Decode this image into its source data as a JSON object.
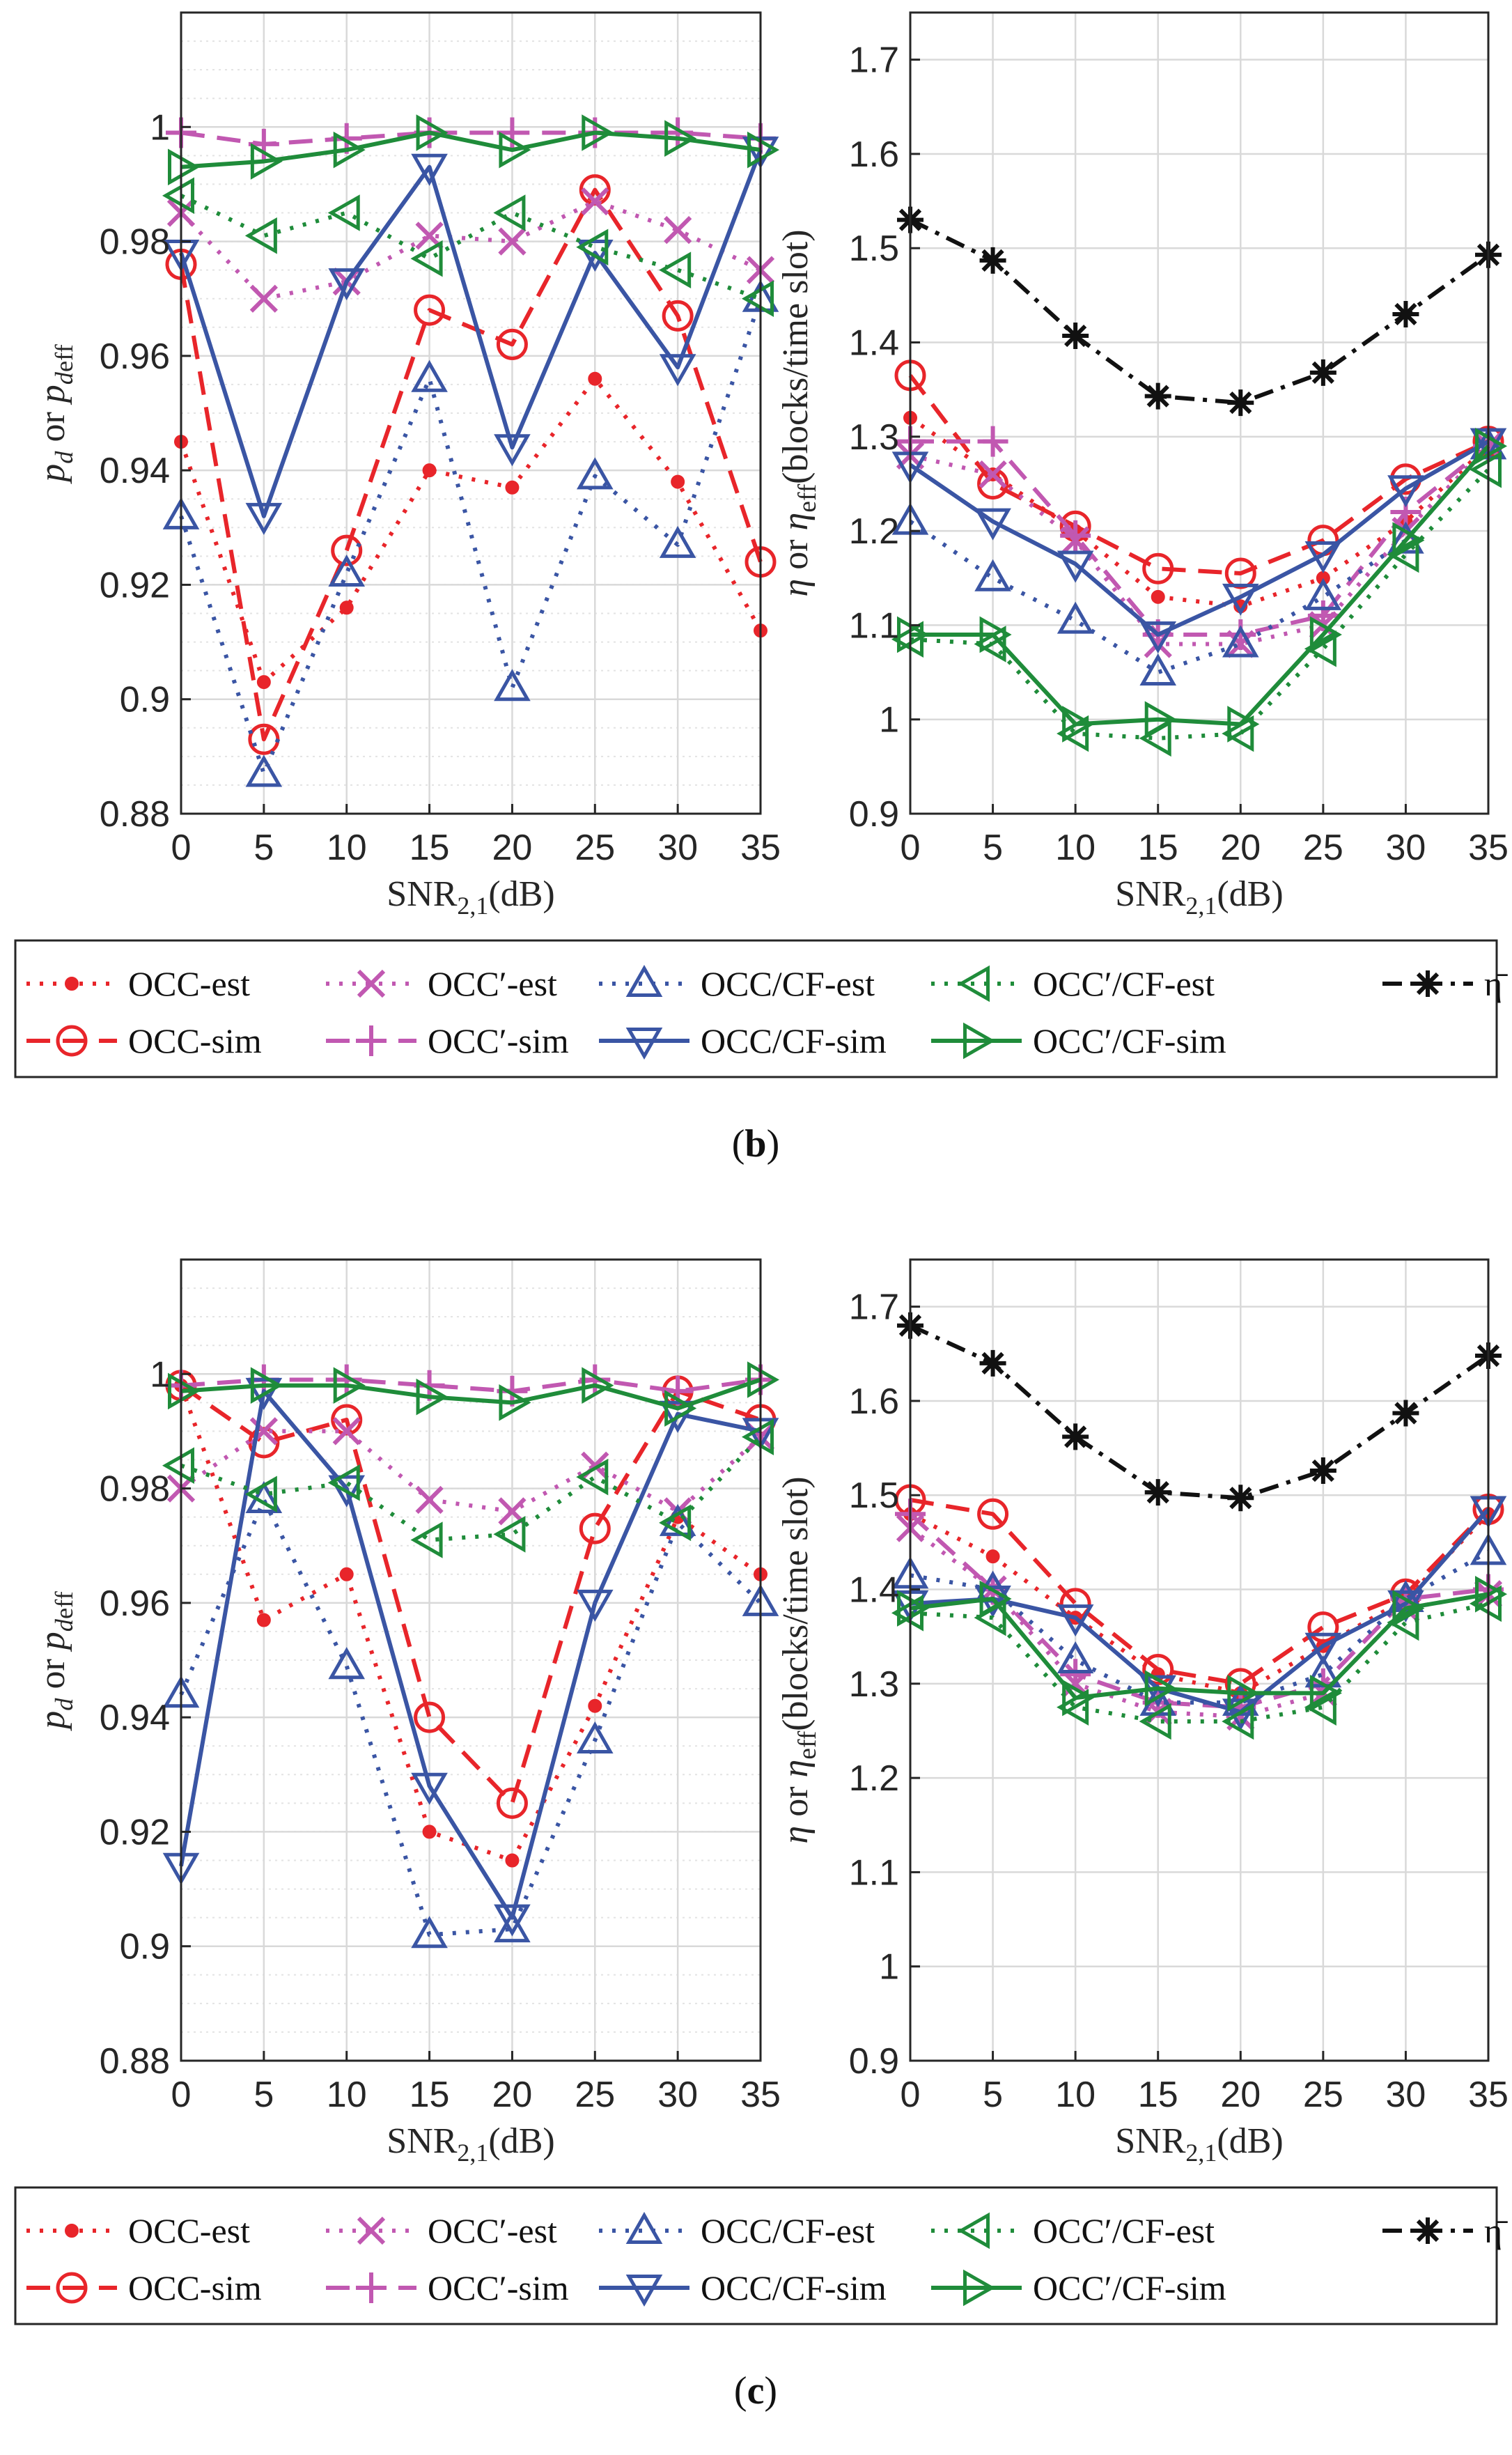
{
  "figure": {
    "panels": [
      {
        "label": "(b)",
        "label_text": "b"
      },
      {
        "label": "(c)",
        "label_text": "c"
      }
    ]
  },
  "colors": {
    "OCC-est": "#e8252a",
    "OCC-sim": "#e8252a",
    "OCC'-est": "#c158b1",
    "OCC'-sim": "#c158b1",
    "OCC/CF-est": "#3a55a4",
    "OCC/CF-sim": "#3a55a4",
    "OCC'/CF-est": "#1f8c3a",
    "OCC'/CF-sim": "#1f8c3a",
    "eta_bar": "#111111",
    "grid": "#d9d9d9",
    "axis": "#262626"
  },
  "legend": {
    "entries": [
      {
        "key": "occ_est",
        "label": "OCC-est"
      },
      {
        "key": "occp_est",
        "label": "OCC′-est"
      },
      {
        "key": "occcf_est",
        "label": "OCC/CF-est"
      },
      {
        "key": "occpcf_est",
        "label": "OCC′/CF-est"
      },
      {
        "key": "eta_bar",
        "label": "η̄"
      },
      {
        "key": "occ_sim",
        "label": "OCC-sim"
      },
      {
        "key": "occp_sim",
        "label": "OCC′-sim"
      },
      {
        "key": "occcf_sim",
        "label": "OCC/CF-sim"
      },
      {
        "key": "occpcf_sim",
        "label": "OCC′/CF-sim"
      }
    ]
  },
  "chart_data": [
    {
      "panel": "b",
      "position": "left",
      "type": "line",
      "title": "",
      "xlabel": "SNR2,1(dB)",
      "ylabel": "pd or pdeff",
      "x": [
        0,
        5,
        10,
        15,
        20,
        25,
        30,
        35
      ],
      "xticks": [
        "0",
        "5",
        "10",
        "15",
        "20",
        "25",
        "30",
        "35"
      ],
      "ylim": [
        0.88,
        1.02
      ],
      "yticks": [
        "0.88",
        "0.9",
        "0.92",
        "0.94",
        "0.96",
        "0.98",
        "1"
      ],
      "series": [
        {
          "key": "occ_est",
          "name": "OCC-est",
          "values": [
            0.945,
            0.903,
            0.916,
            0.94,
            0.937,
            0.956,
            0.938,
            0.912
          ]
        },
        {
          "key": "occ_sim",
          "name": "OCC-sim",
          "values": [
            0.976,
            0.893,
            0.926,
            0.968,
            0.962,
            0.989,
            0.967,
            0.924
          ]
        },
        {
          "key": "occp_est",
          "name": "OCC′-est",
          "values": [
            0.985,
            0.97,
            0.973,
            0.981,
            0.98,
            0.987,
            0.982,
            0.975
          ]
        },
        {
          "key": "occp_sim",
          "name": "OCC′-sim",
          "values": [
            0.999,
            0.997,
            0.998,
            0.999,
            0.999,
            0.999,
            0.999,
            0.998
          ]
        },
        {
          "key": "occcf_est",
          "name": "OCC/CF-est",
          "values": [
            0.932,
            0.887,
            0.922,
            0.956,
            0.902,
            0.939,
            0.927,
            0.97
          ]
        },
        {
          "key": "occcf_sim",
          "name": "OCC/CF-sim",
          "values": [
            0.978,
            0.932,
            0.973,
            0.993,
            0.944,
            0.978,
            0.958,
            0.996
          ]
        },
        {
          "key": "occpcf_est",
          "name": "OCC′/CF-est",
          "values": [
            0.988,
            0.981,
            0.985,
            0.977,
            0.985,
            0.979,
            0.975,
            0.97
          ]
        },
        {
          "key": "occpcf_sim",
          "name": "OCC′/CF-sim",
          "values": [
            0.993,
            0.994,
            0.996,
            0.999,
            0.996,
            0.999,
            0.998,
            0.996
          ]
        }
      ]
    },
    {
      "panel": "b",
      "position": "right",
      "type": "line",
      "title": "",
      "xlabel": "SNR2,1(dB)",
      "ylabel": "η or ηeff(blocks/time slot)",
      "x": [
        0,
        5,
        10,
        15,
        20,
        25,
        30,
        35
      ],
      "xticks": [
        "0",
        "5",
        "10",
        "15",
        "20",
        "25",
        "30",
        "35"
      ],
      "ylim": [
        0.9,
        1.75
      ],
      "yticks": [
        "0.9",
        "1",
        "1.1",
        "1.2",
        "1.3",
        "1.4",
        "1.5",
        "1.6",
        "1.7"
      ],
      "series": [
        {
          "key": "occ_est",
          "name": "OCC-est",
          "values": [
            1.32,
            1.26,
            1.2,
            1.13,
            1.12,
            1.15,
            1.21,
            1.29
          ]
        },
        {
          "key": "occ_sim",
          "name": "OCC-sim",
          "values": [
            1.365,
            1.25,
            1.205,
            1.16,
            1.155,
            1.19,
            1.255,
            1.295
          ]
        },
        {
          "key": "occp_est",
          "name": "OCC′-est",
          "values": [
            1.28,
            1.26,
            1.19,
            1.08,
            1.08,
            1.1,
            1.2,
            1.29
          ]
        },
        {
          "key": "occp_sim",
          "name": "OCC′-sim",
          "values": [
            1.295,
            1.295,
            1.195,
            1.09,
            1.09,
            1.11,
            1.22,
            1.29
          ]
        },
        {
          "key": "occcf_est",
          "name": "OCC/CF-est",
          "values": [
            1.21,
            1.15,
            1.105,
            1.05,
            1.08,
            1.13,
            1.19,
            1.29
          ]
        },
        {
          "key": "occcf_sim",
          "name": "OCC/CF-sim",
          "values": [
            1.27,
            1.21,
            1.165,
            1.09,
            1.13,
            1.175,
            1.245,
            1.295
          ]
        },
        {
          "key": "occpcf_est",
          "name": "OCC′/CF-est",
          "values": [
            1.085,
            1.08,
            0.985,
            0.98,
            0.985,
            1.075,
            1.175,
            1.265
          ]
        },
        {
          "key": "occpcf_sim",
          "name": "OCC′/CF-sim",
          "values": [
            1.09,
            1.09,
            0.995,
            1.0,
            0.995,
            1.09,
            1.19,
            1.29
          ]
        },
        {
          "key": "eta_bar",
          "name": "η̄",
          "values": [
            1.53,
            1.487,
            1.407,
            1.343,
            1.336,
            1.368,
            1.43,
            1.493
          ]
        }
      ]
    },
    {
      "panel": "c",
      "position": "left",
      "type": "line",
      "title": "",
      "xlabel": "SNR2,1(dB)",
      "ylabel": "pd or pdeff",
      "x": [
        0,
        5,
        10,
        15,
        20,
        25,
        30,
        35
      ],
      "xticks": [
        "0",
        "5",
        "10",
        "15",
        "20",
        "25",
        "30",
        "35"
      ],
      "ylim": [
        0.88,
        1.02
      ],
      "yticks": [
        "0.88",
        "0.9",
        "0.92",
        "0.94",
        "0.96",
        "0.98",
        "1"
      ],
      "series": [
        {
          "key": "occ_est",
          "name": "OCC-est",
          "values": [
            0.998,
            0.957,
            0.965,
            0.92,
            0.915,
            0.942,
            0.975,
            0.965
          ]
        },
        {
          "key": "occ_sim",
          "name": "OCC-sim",
          "values": [
            0.998,
            0.988,
            0.992,
            0.94,
            0.925,
            0.973,
            0.997,
            0.992
          ]
        },
        {
          "key": "occp_est",
          "name": "OCC′-est",
          "values": [
            0.98,
            0.99,
            0.99,
            0.978,
            0.976,
            0.984,
            0.976,
            0.989
          ]
        },
        {
          "key": "occp_sim",
          "name": "OCC′-sim",
          "values": [
            0.998,
            0.999,
            0.999,
            0.998,
            0.997,
            0.999,
            0.997,
            0.999
          ]
        },
        {
          "key": "occcf_est",
          "name": "OCC/CF-est",
          "values": [
            0.944,
            0.978,
            0.949,
            0.902,
            0.903,
            0.936,
            0.974,
            0.96
          ]
        },
        {
          "key": "occcf_sim",
          "name": "OCC/CF-sim",
          "values": [
            0.914,
            0.997,
            0.98,
            0.928,
            0.905,
            0.96,
            0.993,
            0.99
          ]
        },
        {
          "key": "occpcf_est",
          "name": "OCC′/CF-est",
          "values": [
            0.984,
            0.979,
            0.981,
            0.971,
            0.972,
            0.982,
            0.974,
            0.989
          ]
        },
        {
          "key": "occpcf_sim",
          "name": "OCC′/CF-sim",
          "values": [
            0.997,
            0.998,
            0.998,
            0.996,
            0.995,
            0.998,
            0.994,
            0.999
          ]
        }
      ]
    },
    {
      "panel": "c",
      "position": "right",
      "type": "line",
      "title": "",
      "xlabel": "SNR2,1(dB)",
      "ylabel": "η or ηeff(blocks/time slot)",
      "x": [
        0,
        5,
        10,
        15,
        20,
        25,
        30,
        35
      ],
      "xticks": [
        "0",
        "5",
        "10",
        "15",
        "20",
        "25",
        "30",
        "35"
      ],
      "ylim": [
        0.9,
        1.75
      ],
      "yticks": [
        "0.9",
        "1",
        "1.1",
        "1.2",
        "1.3",
        "1.4",
        "1.5",
        "1.6",
        "1.7"
      ],
      "series": [
        {
          "key": "occ_est",
          "name": "OCC-est",
          "values": [
            1.48,
            1.435,
            1.37,
            1.31,
            1.29,
            1.34,
            1.39,
            1.48
          ]
        },
        {
          "key": "occ_sim",
          "name": "OCC-sim",
          "values": [
            1.495,
            1.48,
            1.385,
            1.315,
            1.3,
            1.36,
            1.395,
            1.485
          ]
        },
        {
          "key": "occp_est",
          "name": "OCC′-est",
          "values": [
            1.465,
            1.4,
            1.3,
            1.27,
            1.265,
            1.29,
            1.38,
            1.395
          ]
        },
        {
          "key": "occp_sim",
          "name": "OCC′-sim",
          "values": [
            1.48,
            1.4,
            1.31,
            1.28,
            1.275,
            1.3,
            1.39,
            1.4
          ]
        },
        {
          "key": "occcf_est",
          "name": "OCC/CF-est",
          "values": [
            1.415,
            1.4,
            1.325,
            1.28,
            1.28,
            1.31,
            1.39,
            1.44
          ]
        },
        {
          "key": "occcf_sim",
          "name": "OCC/CF-sim",
          "values": [
            1.385,
            1.39,
            1.37,
            1.295,
            1.27,
            1.34,
            1.385,
            1.485
          ]
        },
        {
          "key": "occpcf_est",
          "name": "OCC′/CF-est",
          "values": [
            1.375,
            1.37,
            1.275,
            1.26,
            1.26,
            1.275,
            1.365,
            1.385
          ]
        },
        {
          "key": "occpcf_sim",
          "name": "OCC′/CF-sim",
          "values": [
            1.38,
            1.39,
            1.285,
            1.295,
            1.29,
            1.29,
            1.38,
            1.395
          ]
        },
        {
          "key": "eta_bar",
          "name": "η̄",
          "values": [
            1.68,
            1.64,
            1.562,
            1.503,
            1.497,
            1.526,
            1.587,
            1.648
          ]
        }
      ]
    }
  ]
}
